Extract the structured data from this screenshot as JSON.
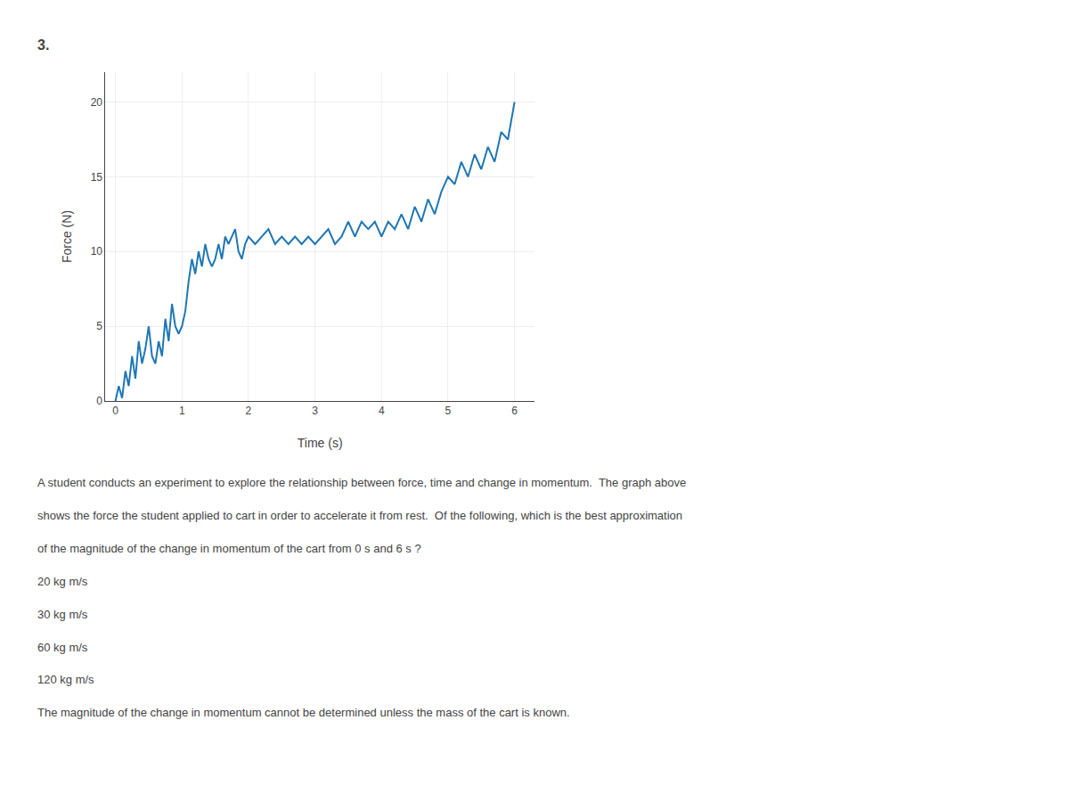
{
  "chart_data": {
    "type": "line",
    "xlabel": "Time (s)",
    "ylabel": "Force (N)",
    "xlim": [
      -0.15,
      6.3
    ],
    "ylim": [
      0,
      22
    ],
    "xticks": [
      0,
      1,
      2,
      3,
      4,
      5,
      6
    ],
    "yticks": [
      0,
      5,
      10,
      15,
      20
    ],
    "grid": true,
    "annotations": [
      "3.",
      "A student conducts an experiment to explore the relationship between force, time and change in momentum.  The graph above",
      "shows the force the student applied to cart in order to accelerate it from rest.  Of the following, which is the best approximation",
      "of the magnitude of the change in momentum of the cart from 0 s and 6 s ?",
      "20 kg m/s",
      "30 kg m/s",
      "60 kg m/s",
      "120 kg m/s",
      "The magnitude of the change in momentum cannot be determined unless the mass of the cart is known."
    ],
    "x": [
      0.0,
      0.05,
      0.1,
      0.15,
      0.2,
      0.25,
      0.3,
      0.35,
      0.4,
      0.45,
      0.5,
      0.55,
      0.6,
      0.65,
      0.7,
      0.75,
      0.8,
      0.85,
      0.9,
      0.95,
      1.0,
      1.05,
      1.1,
      1.15,
      1.2,
      1.25,
      1.3,
      1.35,
      1.4,
      1.45,
      1.5,
      1.55,
      1.6,
      1.65,
      1.7,
      1.75,
      1.8,
      1.85,
      1.9,
      1.95,
      2.0,
      2.1,
      2.2,
      2.3,
      2.4,
      2.5,
      2.6,
      2.7,
      2.8,
      2.9,
      3.0,
      3.1,
      3.2,
      3.3,
      3.4,
      3.5,
      3.6,
      3.7,
      3.8,
      3.9,
      4.0,
      4.1,
      4.2,
      4.3,
      4.4,
      4.5,
      4.6,
      4.7,
      4.8,
      4.9,
      5.0,
      5.1,
      5.2,
      5.3,
      5.4,
      5.5,
      5.6,
      5.7,
      5.8,
      5.9,
      6.0
    ],
    "values": [
      0.0,
      1.0,
      0.2,
      2.0,
      1.0,
      3.0,
      1.5,
      4.0,
      2.5,
      3.5,
      5.0,
      3.0,
      2.5,
      4.0,
      3.0,
      5.5,
      4.0,
      6.5,
      5.0,
      4.5,
      5.0,
      6.0,
      8.0,
      9.5,
      8.5,
      10.0,
      9.0,
      10.5,
      9.5,
      9.0,
      9.5,
      10.5,
      9.5,
      11.0,
      10.5,
      11.0,
      11.5,
      10.0,
      9.5,
      10.5,
      11.0,
      10.5,
      11.0,
      11.5,
      10.5,
      11.0,
      10.5,
      11.0,
      10.5,
      11.0,
      10.5,
      11.0,
      11.5,
      10.5,
      11.0,
      12.0,
      11.0,
      12.0,
      11.5,
      12.0,
      11.0,
      12.0,
      11.5,
      12.5,
      11.5,
      13.0,
      12.0,
      13.5,
      12.5,
      14.0,
      15.0,
      14.5,
      16.0,
      15.0,
      16.5,
      15.5,
      17.0,
      16.0,
      18.0,
      17.5,
      20.0
    ]
  }
}
